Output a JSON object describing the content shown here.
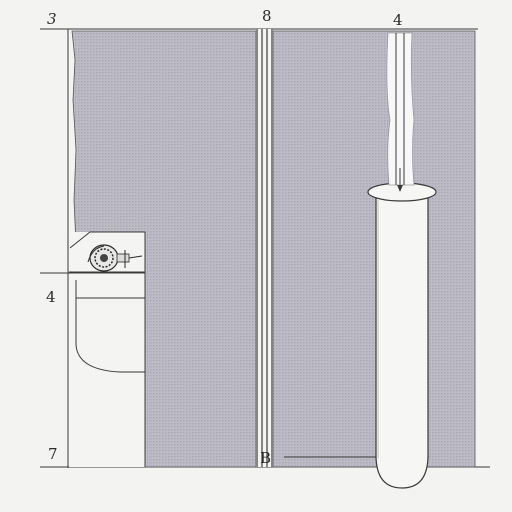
{
  "labels": {
    "top_left": "3",
    "top_center": "8",
    "top_right": "4",
    "left_middle": "4",
    "left_bottom": "7",
    "bottom_center": "B"
  },
  "colors": {
    "background": "#f3f3f1",
    "hatch_fill": "#b9b8c2",
    "line": "#3a3a3a",
    "tube_fill": "#f6f6f4"
  },
  "icons": {
    "valve": "valve-wheel-icon"
  }
}
